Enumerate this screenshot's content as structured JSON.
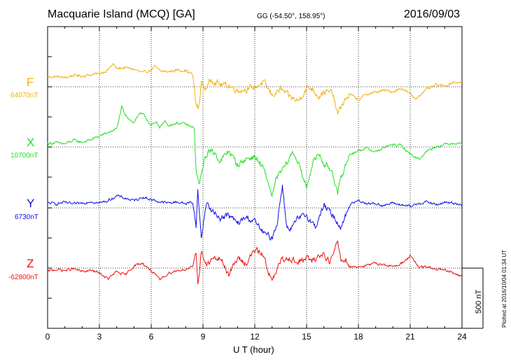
{
  "header": {
    "station": "Macquarie Island (MCQ)  [GA]",
    "coords": "GG (-54.50°, 158.95°)",
    "date": "2016/09/03"
  },
  "footer": {
    "plotted": "Plotted at 2016/10/04 01:34 UT",
    "scale_label": "500 nT"
  },
  "chart_data": {
    "type": "line",
    "title": "Macquarie Island (MCQ)  [GA]",
    "xlabel": "U T (hour)",
    "ylabel": "",
    "xlim": [
      0,
      24
    ],
    "xticks": [
      "0",
      "3",
      "6",
      "9",
      "12",
      "15",
      "18",
      "21",
      "24"
    ],
    "scale_bar_nT": 500,
    "grid": true,
    "series": [
      {
        "name": "F",
        "baseline": "64070nT",
        "color": "#f0b010",
        "points": [
          [
            0,
            80
          ],
          [
            0.5,
            85
          ],
          [
            1,
            75
          ],
          [
            1.5,
            95
          ],
          [
            2,
            90
          ],
          [
            2.5,
            100
          ],
          [
            3,
            110
          ],
          [
            3.5,
            140
          ],
          [
            3.8,
            190
          ],
          [
            4,
            150
          ],
          [
            4.5,
            160
          ],
          [
            5,
            145
          ],
          [
            5.5,
            115
          ],
          [
            6,
            140
          ],
          [
            6.2,
            170
          ],
          [
            6.5,
            130
          ],
          [
            7,
            125
          ],
          [
            7.5,
            140
          ],
          [
            8,
            135
          ],
          [
            8.4,
            100
          ],
          [
            8.6,
            -150
          ],
          [
            8.75,
            -190
          ],
          [
            8.9,
            40
          ],
          [
            9.1,
            -20
          ],
          [
            9.5,
            60
          ],
          [
            10,
            20
          ],
          [
            10.5,
            10
          ],
          [
            11,
            -30
          ],
          [
            11.5,
            -20
          ],
          [
            12,
            -5
          ],
          [
            12.5,
            40
          ],
          [
            13,
            -70
          ],
          [
            13.5,
            -20
          ],
          [
            14,
            -80
          ],
          [
            14.5,
            -120
          ],
          [
            15,
            -15
          ],
          [
            15.3,
            -10
          ],
          [
            15.7,
            -80
          ],
          [
            16,
            -40
          ],
          [
            16.5,
            -50
          ],
          [
            16.8,
            -230
          ],
          [
            17,
            -160
          ],
          [
            17.5,
            -60
          ],
          [
            18,
            -110
          ],
          [
            18.5,
            -60
          ],
          [
            19,
            -45
          ],
          [
            19.5,
            -30
          ],
          [
            20,
            -40
          ],
          [
            20.5,
            -10
          ],
          [
            21,
            -60
          ],
          [
            21.3,
            -100
          ],
          [
            21.7,
            -50
          ],
          [
            22,
            -20
          ],
          [
            22.5,
            15
          ],
          [
            23,
            5
          ],
          [
            23.5,
            40
          ],
          [
            24,
            35
          ]
        ]
      },
      {
        "name": "X",
        "baseline": "10700nT",
        "color": "#20e020",
        "points": [
          [
            0,
            30
          ],
          [
            0.5,
            35
          ],
          [
            1,
            25
          ],
          [
            1.5,
            55
          ],
          [
            2,
            40
          ],
          [
            2.5,
            60
          ],
          [
            3,
            90
          ],
          [
            3.5,
            120
          ],
          [
            4,
            150
          ],
          [
            4.3,
            330
          ],
          [
            4.5,
            260
          ],
          [
            4.8,
            230
          ],
          [
            5,
            200
          ],
          [
            5.3,
            280
          ],
          [
            5.6,
            260
          ],
          [
            6,
            180
          ],
          [
            6.3,
            200
          ],
          [
            6.5,
            170
          ],
          [
            6.8,
            210
          ],
          [
            7,
            180
          ],
          [
            7.5,
            200
          ],
          [
            8,
            190
          ],
          [
            8.5,
            150
          ],
          [
            8.6,
            -200
          ],
          [
            8.8,
            -320
          ],
          [
            9,
            -150
          ],
          [
            9.3,
            -30
          ],
          [
            9.7,
            -50
          ],
          [
            10,
            -120
          ],
          [
            10.5,
            -30
          ],
          [
            11,
            -150
          ],
          [
            11.5,
            -100
          ],
          [
            12,
            -80
          ],
          [
            12.5,
            -180
          ],
          [
            13,
            -400
          ],
          [
            13.3,
            -250
          ],
          [
            13.8,
            -150
          ],
          [
            14.2,
            -40
          ],
          [
            14.5,
            -120
          ],
          [
            14.8,
            -260
          ],
          [
            15,
            -340
          ],
          [
            15.3,
            -150
          ],
          [
            15.7,
            -50
          ],
          [
            16,
            -140
          ],
          [
            16.5,
            -200
          ],
          [
            16.8,
            -400
          ],
          [
            17,
            -250
          ],
          [
            17.5,
            -60
          ],
          [
            18,
            -30
          ],
          [
            18.5,
            -10
          ],
          [
            19,
            -40
          ],
          [
            19.5,
            -5
          ],
          [
            20,
            20
          ],
          [
            20.5,
            10
          ],
          [
            21,
            -60
          ],
          [
            21.5,
            -100
          ],
          [
            22,
            -30
          ],
          [
            22.5,
            5
          ],
          [
            23,
            20
          ],
          [
            23.5,
            35
          ],
          [
            24,
            30
          ]
        ]
      },
      {
        "name": "Y",
        "baseline": "6730nT",
        "color": "#1010e0",
        "points": [
          [
            0,
            40
          ],
          [
            0.5,
            35
          ],
          [
            1,
            45
          ],
          [
            1.5,
            30
          ],
          [
            2,
            40
          ],
          [
            2.5,
            55
          ],
          [
            3,
            40
          ],
          [
            3.5,
            60
          ],
          [
            4,
            100
          ],
          [
            4.5,
            80
          ],
          [
            5,
            60
          ],
          [
            5.5,
            90
          ],
          [
            6,
            70
          ],
          [
            6.5,
            50
          ],
          [
            7,
            40
          ],
          [
            7.5,
            50
          ],
          [
            8,
            35
          ],
          [
            8.4,
            50
          ],
          [
            8.6,
            -150
          ],
          [
            8.7,
            140
          ],
          [
            8.9,
            -250
          ],
          [
            9.2,
            50
          ],
          [
            9.5,
            -30
          ],
          [
            10,
            -80
          ],
          [
            10.5,
            -60
          ],
          [
            11,
            -130
          ],
          [
            11.5,
            -80
          ],
          [
            12,
            -110
          ],
          [
            12.5,
            -210
          ],
          [
            13,
            -250
          ],
          [
            13.3,
            -120
          ],
          [
            13.6,
            190
          ],
          [
            13.8,
            -100
          ],
          [
            14,
            -200
          ],
          [
            14.5,
            -90
          ],
          [
            15,
            -60
          ],
          [
            15.5,
            -160
          ],
          [
            16,
            20
          ],
          [
            16.5,
            -60
          ],
          [
            17,
            -160
          ],
          [
            17.5,
            30
          ],
          [
            18,
            60
          ],
          [
            18.5,
            40
          ],
          [
            19,
            35
          ],
          [
            19.5,
            20
          ],
          [
            20,
            40
          ],
          [
            20.5,
            25
          ],
          [
            21,
            10
          ],
          [
            21.5,
            40
          ],
          [
            22,
            50
          ],
          [
            22.5,
            25
          ],
          [
            23,
            45
          ],
          [
            23.5,
            40
          ],
          [
            24,
            30
          ]
        ]
      },
      {
        "name": "Z",
        "baseline": "-62800nT",
        "color": "#ee1010",
        "points": [
          [
            0,
            -30
          ],
          [
            0.5,
            -10
          ],
          [
            1,
            -20
          ],
          [
            1.5,
            -5
          ],
          [
            2,
            -30
          ],
          [
            2.5,
            -20
          ],
          [
            3,
            -40
          ],
          [
            3.5,
            -90
          ],
          [
            4,
            -30
          ],
          [
            4.5,
            -60
          ],
          [
            5,
            20
          ],
          [
            5.5,
            40
          ],
          [
            6,
            -20
          ],
          [
            6.5,
            -100
          ],
          [
            7,
            -40
          ],
          [
            7.5,
            -20
          ],
          [
            8,
            -10
          ],
          [
            8.4,
            5
          ],
          [
            8.6,
            150
          ],
          [
            8.7,
            -150
          ],
          [
            8.9,
            140
          ],
          [
            9.2,
            20
          ],
          [
            9.5,
            70
          ],
          [
            10,
            80
          ],
          [
            10.5,
            -50
          ],
          [
            11,
            80
          ],
          [
            11.5,
            40
          ],
          [
            12,
            150
          ],
          [
            12.5,
            110
          ],
          [
            13,
            -120
          ],
          [
            13.5,
            60
          ],
          [
            14,
            90
          ],
          [
            14.5,
            40
          ],
          [
            15,
            90
          ],
          [
            15.3,
            50
          ],
          [
            15.6,
            90
          ],
          [
            16,
            120
          ],
          [
            16.3,
            60
          ],
          [
            16.5,
            90
          ],
          [
            16.8,
            230
          ],
          [
            17,
            60
          ],
          [
            17.3,
            80
          ],
          [
            17.5,
            10
          ],
          [
            18,
            15
          ],
          [
            18.5,
            20
          ],
          [
            19,
            40
          ],
          [
            19.5,
            30
          ],
          [
            20,
            10
          ],
          [
            20.5,
            40
          ],
          [
            21,
            100
          ],
          [
            21.5,
            5
          ],
          [
            22,
            10
          ],
          [
            22.5,
            -10
          ],
          [
            23,
            -20
          ],
          [
            23.5,
            -40
          ],
          [
            24,
            -70
          ]
        ]
      }
    ]
  }
}
